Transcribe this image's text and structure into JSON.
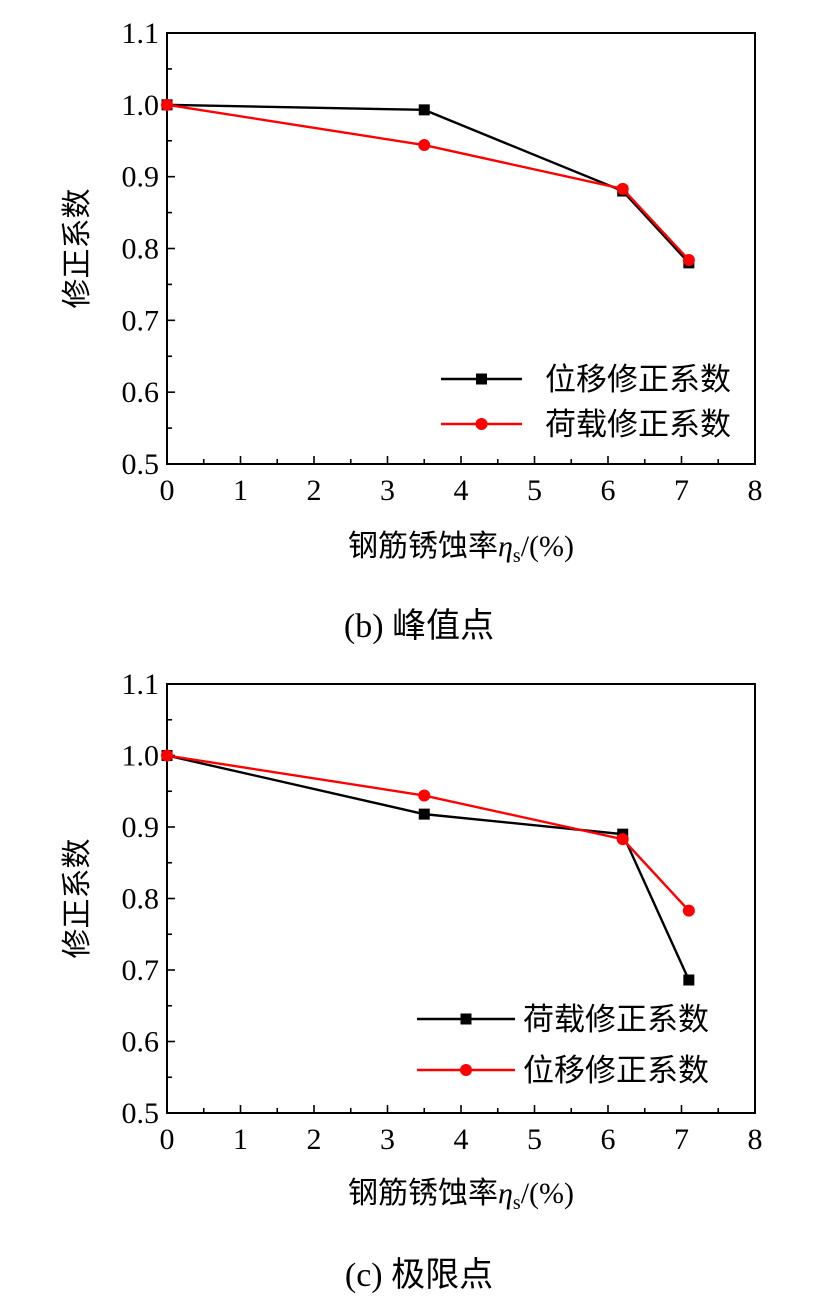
{
  "chart_data": [
    {
      "type": "line",
      "caption": "(b)  峰值点",
      "xlabel_prefix": "钢筋锈蚀率",
      "xlabel_symbol": "η",
      "xlabel_sub": "s",
      "xlabel_suffix": "/(%)",
      "ylabel": "修正系数",
      "xlim": [
        0,
        8
      ],
      "ylim": [
        0.5,
        1.1
      ],
      "xticks": [
        "0",
        "1",
        "2",
        "3",
        "4",
        "5",
        "6",
        "7",
        "8"
      ],
      "yticks": [
        "0.5",
        "0.6",
        "0.7",
        "0.8",
        "0.9",
        "1.0",
        "1.1"
      ],
      "legend_position": "bottom-right",
      "series": [
        {
          "name": "位移修正系数",
          "color": "#000000",
          "marker": "square",
          "x": [
            0,
            3.5,
            6.2,
            7.1
          ],
          "values": [
            1.0,
            0.993,
            0.88,
            0.78
          ]
        },
        {
          "name": "荷载修正系数",
          "color": "#ff0000",
          "marker": "circle",
          "x": [
            0,
            3.5,
            6.2,
            7.1
          ],
          "values": [
            1.0,
            0.944,
            0.883,
            0.784
          ]
        }
      ]
    },
    {
      "type": "line",
      "caption": "(c)  极限点",
      "xlabel_prefix": "钢筋锈蚀率",
      "xlabel_symbol": "η",
      "xlabel_sub": "s",
      "xlabel_suffix": "/(%)",
      "ylabel": "修正系数",
      "xlim": [
        0,
        8
      ],
      "ylim": [
        0.5,
        1.1
      ],
      "xticks": [
        "0",
        "1",
        "2",
        "3",
        "4",
        "5",
        "6",
        "7",
        "8"
      ],
      "yticks": [
        "0.5",
        "0.6",
        "0.7",
        "0.8",
        "0.9",
        "1.0",
        "1.1"
      ],
      "legend_position": "bottom-right",
      "series": [
        {
          "name": "荷载修正系数",
          "color": "#000000",
          "marker": "square",
          "x": [
            0,
            3.5,
            6.2,
            7.1
          ],
          "values": [
            1.0,
            0.918,
            0.89,
            0.686
          ]
        },
        {
          "name": "位移修正系数",
          "color": "#ff0000",
          "marker": "circle",
          "x": [
            0,
            3.5,
            6.2,
            7.1
          ],
          "values": [
            1.0,
            0.944,
            0.883,
            0.783
          ]
        }
      ]
    }
  ]
}
